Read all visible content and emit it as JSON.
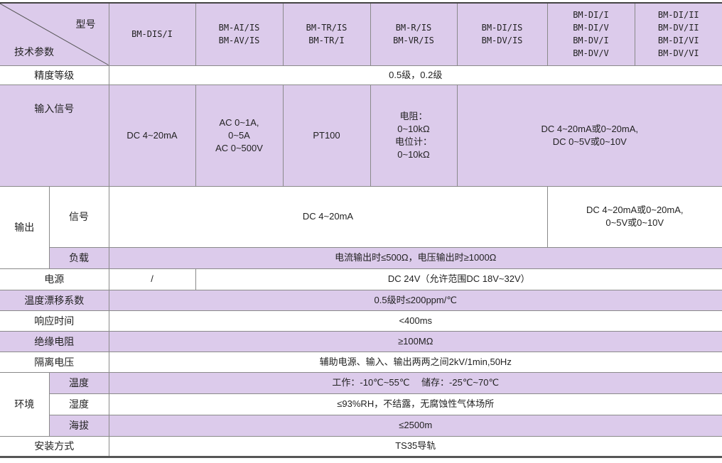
{
  "header": {
    "corner_top": "型号",
    "corner_bottom": "技术参数",
    "models": [
      [
        "BM-DIS/I"
      ],
      [
        "BM-AI/IS",
        "BM-AV/IS"
      ],
      [
        "BM-TR/IS",
        "BM-TR/I"
      ],
      [
        "BM-R/IS",
        "BM-VR/IS"
      ],
      [
        "BM-DI/IS",
        "BM-DV/IS"
      ],
      [
        "BM-DI/I",
        "BM-DI/V",
        "BM-DV/I",
        "BM-DV/V"
      ],
      [
        "BM-DI/II",
        "BM-DV/II",
        "BM-DI/VI",
        "BM-DV/VI"
      ]
    ]
  },
  "rows": {
    "accuracy": {
      "label": "精度等级",
      "value": "0.5级，0.2级"
    },
    "input": {
      "label": "输入信号",
      "values": [
        [
          "DC 4~20mA"
        ],
        [
          "AC 0~1A,",
          "0~5A",
          "AC 0~500V"
        ],
        [
          "PT100"
        ],
        [
          "电阻：",
          "0~10kΩ",
          "电位计：",
          "0~10kΩ"
        ],
        [
          "DC 4~20mA或0~20mA,",
          "DC 0~5V或0~10V"
        ]
      ]
    },
    "output": {
      "label": "输出",
      "signal_label": "信号",
      "signal_values": [
        "DC 4~20mA",
        [
          "DC 4~20mA或0~20mA,",
          "0~5V或0~10V"
        ]
      ],
      "load_label": "负载",
      "load_value": "电流输出时≤500Ω，电压输出时≥1000Ω"
    },
    "power": {
      "label": "电源",
      "values": [
        "/",
        "DC 24V（允许范围DC 18V~32V）"
      ]
    },
    "temp_drift": {
      "label": "温度漂移系数",
      "value": "0.5级时≤200ppm/℃"
    },
    "response": {
      "label": "响应时间",
      "value": "<400ms"
    },
    "insulation": {
      "label": "绝缘电阻",
      "value": "≥100MΩ"
    },
    "isolation": {
      "label": "隔离电压",
      "value": "辅助电源、输入、输出两两之间2kV/1min,50Hz"
    },
    "environment": {
      "label": "环境",
      "temperature_label": "温度",
      "temperature_value": "工作：-10℃~55℃　 储存：-25℃~70℃",
      "humidity_label": "湿度",
      "humidity_value": "≤93%RH，不结露，无腐蚀性气体场所",
      "altitude_label": "海拔",
      "altitude_value": "≤2500m"
    },
    "mounting": {
      "label": "安装方式",
      "value": "TS35导轨"
    }
  },
  "colors": {
    "row_highlight": "#dccbeb",
    "border": "#8a8a8a"
  }
}
